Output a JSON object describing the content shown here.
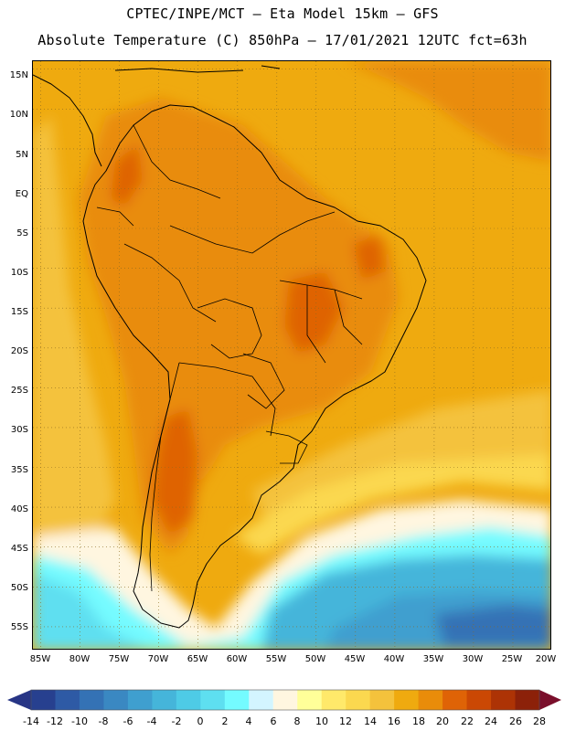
{
  "header": {
    "line1": "CPTEC/INPE/MCT –  Eta Model 15km – GFS",
    "line2": "Absolute Temperature (C) 850hPa – 17/01/2021 12UTC fct=63h"
  },
  "map": {
    "latitude_labels": [
      "15N",
      "10N",
      "5N",
      "EQ",
      "5S",
      "10S",
      "15S",
      "20S",
      "25S",
      "30S",
      "35S",
      "40S",
      "45S",
      "50S",
      "55S"
    ],
    "longitude_labels": [
      "85W",
      "80W",
      "75W",
      "70W",
      "65W",
      "60W",
      "55W",
      "50W",
      "45W",
      "40W",
      "35W",
      "30W",
      "25W",
      "20W"
    ],
    "lat_range": [
      16,
      -58
    ],
    "lon_range": [
      -86,
      -20
    ]
  },
  "colorbar": {
    "labels": [
      "-14",
      "-12",
      "-10",
      "-8",
      "-6",
      "-4",
      "-2",
      "0",
      "2",
      "4",
      "6",
      "8",
      "10",
      "12",
      "14",
      "16",
      "18",
      "20",
      "22",
      "24",
      "26",
      "28"
    ],
    "colors": [
      "#27408f",
      "#2e5aa5",
      "#3472b5",
      "#3a88c2",
      "#3f9fcf",
      "#45b5da",
      "#4ecbe6",
      "#5edff0",
      "#74fbff",
      "#d3f5ff",
      "#fff6e0",
      "#ffff99",
      "#ffe96a",
      "#fbd84f",
      "#f4c23c",
      "#efaa0f",
      "#e98c0a",
      "#df6306",
      "#cb4804",
      "#ad3305",
      "#8c2109"
    ],
    "under_color": "#273585",
    "over_color": "#7a0e2b"
  }
}
